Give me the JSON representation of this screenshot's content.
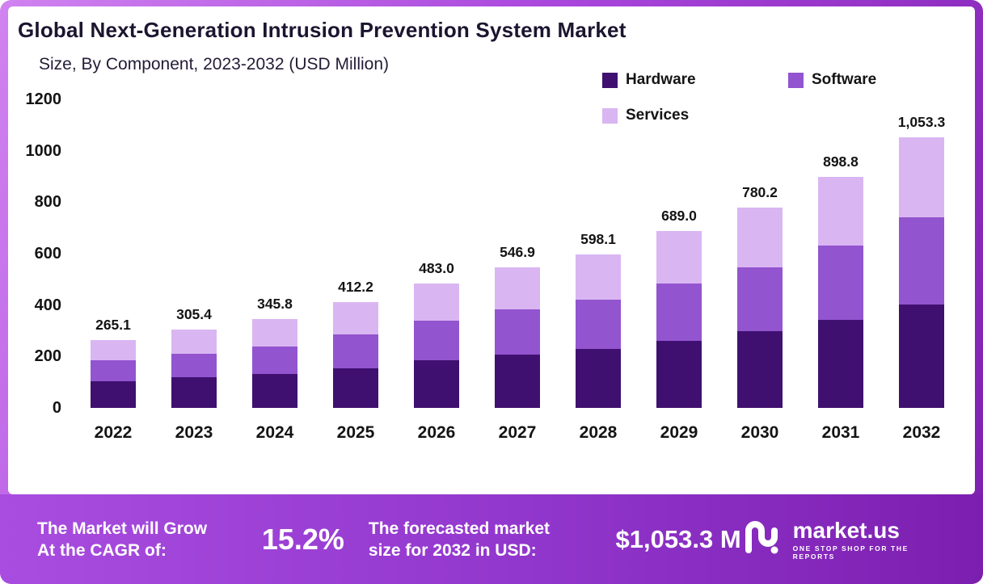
{
  "title": "Global Next-Generation Intrusion Prevention System Market",
  "subtitle": "Size, By Component, 2023-2032 (USD Million)",
  "colors": {
    "hardware": "#401070",
    "software": "#9254cf",
    "services": "#d9b6f2",
    "frame_gradient_start": "#d083f0",
    "frame_gradient_end": "#7d1fae"
  },
  "legend": [
    {
      "label": "Hardware",
      "color": "#401070"
    },
    {
      "label": "Software",
      "color": "#9254cf"
    },
    {
      "label": "Services",
      "color": "#d9b6f2"
    }
  ],
  "chart_data": {
    "type": "bar",
    "stacked": true,
    "title": "Global Next-Generation Intrusion Prevention System Market Size, By Component, 2023-2032 (USD Million)",
    "categories": [
      "2022",
      "2023",
      "2024",
      "2025",
      "2026",
      "2027",
      "2028",
      "2029",
      "2030",
      "2031",
      "2032"
    ],
    "series": [
      {
        "name": "Hardware",
        "color": "#401070",
        "values": [
          103,
          118,
          133,
          155,
          185,
          207,
          228,
          262,
          298,
          343,
          403
        ]
      },
      {
        "name": "Software",
        "color": "#9254cf",
        "values": [
          82,
          93,
          106,
          130,
          153,
          175,
          192,
          222,
          250,
          290,
          340
        ]
      },
      {
        "name": "Services",
        "color": "#d9b6f2",
        "values": [
          80.1,
          94.4,
          106.8,
          127.2,
          145.0,
          164.9,
          178.1,
          205.0,
          232.2,
          265.8,
          310.3
        ]
      }
    ],
    "totals": [
      265.1,
      305.4,
      345.8,
      412.2,
      483.0,
      546.9,
      598.1,
      689.0,
      780.2,
      898.8,
      1053.3
    ],
    "total_labels": [
      "265.1",
      "305.4",
      "345.8",
      "412.2",
      "483.0",
      "546.9",
      "598.1",
      "689.0",
      "780.2",
      "898.8",
      "1,053.3"
    ],
    "xlabel": "",
    "ylabel": "",
    "ylim": [
      0,
      1200
    ],
    "yticks": [
      0,
      200,
      400,
      600,
      800,
      1000,
      1200
    ],
    "grid": false,
    "legend_position": "top-right"
  },
  "banner": {
    "cagr_label_line1": "The Market will Grow",
    "cagr_label_line2": "At the CAGR of:",
    "cagr_value": "15.2%",
    "forecast_label_line1": "The forecasted market",
    "forecast_label_line2": "size for 2032 in USD:",
    "forecast_value": "$1,053.3 M",
    "brand": "market.us",
    "brand_tagline": "ONE STOP SHOP FOR THE REPORTS"
  }
}
